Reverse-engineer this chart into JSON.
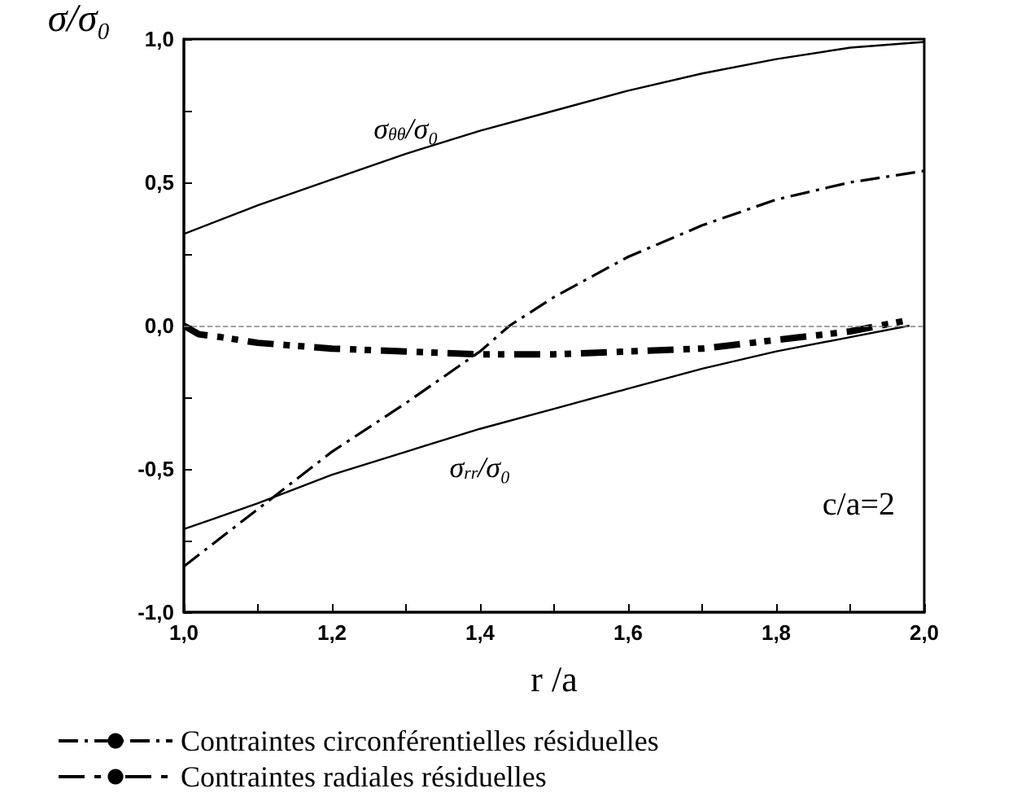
{
  "chart_data": {
    "type": "line",
    "xlabel": "r /a",
    "ylabel": "σ/σ₀",
    "xlim": [
      1.0,
      2.0
    ],
    "ylim": [
      -1.0,
      1.0
    ],
    "xticks": [
      {
        "value": 1.0,
        "label": "1,0"
      },
      {
        "value": 1.1,
        "label": null
      },
      {
        "value": 1.2,
        "label": "1,2"
      },
      {
        "value": 1.3,
        "label": null
      },
      {
        "value": 1.4,
        "label": "1,4"
      },
      {
        "value": 1.5,
        "label": null
      },
      {
        "value": 1.6,
        "label": "1,6"
      },
      {
        "value": 1.7,
        "label": null
      },
      {
        "value": 1.8,
        "label": "1,8"
      },
      {
        "value": 1.9,
        "label": null
      },
      {
        "value": 2.0,
        "label": "2,0"
      }
    ],
    "yticks": [
      {
        "value": -1.0,
        "label": "-1,0"
      },
      {
        "value": -0.75,
        "label": null
      },
      {
        "value": -0.5,
        "label": "-0,5"
      },
      {
        "value": -0.25,
        "label": null
      },
      {
        "value": 0.0,
        "label": "0,0"
      },
      {
        "value": 0.25,
        "label": null
      },
      {
        "value": 0.5,
        "label": "0,5"
      },
      {
        "value": 0.75,
        "label": null
      },
      {
        "value": 1.0,
        "label": "1,0"
      }
    ],
    "grid": false,
    "legend": "bottom",
    "marker": "none",
    "annotations": [
      "c/a=2"
    ],
    "ref_lines": [
      {
        "axis": "y",
        "value": 0,
        "color": "#808080",
        "line_style": "dashed"
      }
    ],
    "series": [
      {
        "name": "σ$_{θθ}$/σ₀",
        "color": "#000000",
        "line_style": "solid",
        "x": [
          1.0,
          1.1,
          1.2,
          1.3,
          1.4,
          1.5,
          1.6,
          1.7,
          1.8,
          1.9,
          2.0
        ],
        "values": [
          0.32,
          0.42,
          0.51,
          0.6,
          0.68,
          0.75,
          0.82,
          0.88,
          0.93,
          0.97,
          0.99
        ]
      },
      {
        "name": "σ$_{rr}$/σ₀",
        "color": "#000000",
        "line_style": "solid",
        "x": [
          1.0,
          1.1,
          1.2,
          1.3,
          1.4,
          1.5,
          1.6,
          1.7,
          1.8,
          1.9,
          1.98
        ],
        "values": [
          -0.71,
          -0.62,
          -0.52,
          -0.44,
          -0.36,
          -0.29,
          -0.22,
          -0.15,
          -0.09,
          -0.04,
          0.0
        ]
      },
      {
        "name": "Contraintes circonférentielles résiduelles",
        "color": "#000000",
        "line_style": "dashed",
        "x": [
          1.0,
          1.1,
          1.2,
          1.3,
          1.4,
          1.44,
          1.5,
          1.6,
          1.7,
          1.8,
          1.9,
          2.0
        ],
        "values": [
          -0.84,
          -0.64,
          -0.44,
          -0.27,
          -0.09,
          0.0,
          0.1,
          0.24,
          0.35,
          0.44,
          0.5,
          0.54
        ]
      },
      {
        "name": "Contraintes radiales résiduelles",
        "color": "#000000",
        "line_style": "dashed",
        "x": [
          1.0,
          1.02,
          1.05,
          1.1,
          1.2,
          1.3,
          1.4,
          1.5,
          1.6,
          1.7,
          1.8,
          1.9,
          1.98
        ],
        "values": [
          0.0,
          -0.03,
          -0.04,
          -0.06,
          -0.08,
          -0.09,
          -0.1,
          -0.1,
          -0.09,
          -0.08,
          -0.05,
          -0.02,
          0.02
        ]
      }
    ]
  }
}
